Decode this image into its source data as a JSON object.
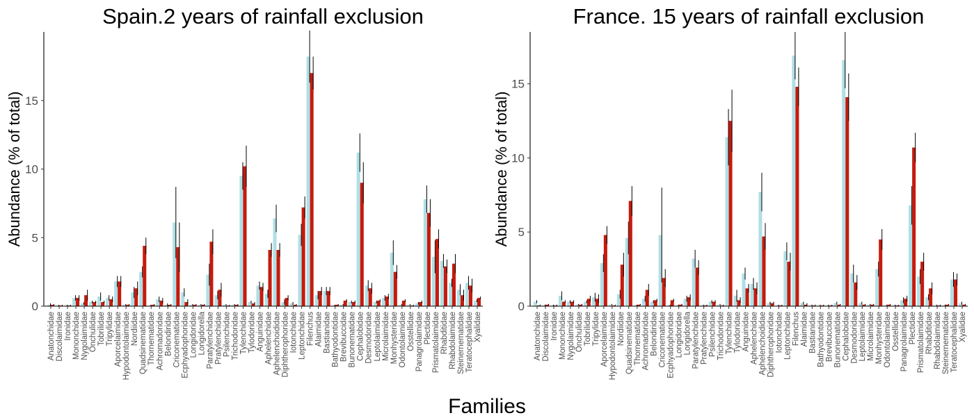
{
  "figure": {
    "xlabel": "Families"
  },
  "colors": {
    "control": "#b0dfe5",
    "exclusion": "#c51b0e"
  },
  "chart_data": [
    {
      "type": "bar",
      "title": "Spain.2 years of rainfall exclusion",
      "xlabel": "",
      "ylabel": "Abundance (% of total)",
      "ylim": [
        0,
        20
      ],
      "yticks": [
        0,
        5,
        10,
        15
      ],
      "grid": false,
      "legend": "none",
      "categories": [
        "Anatonchidae",
        "Discolaimidae",
        "Ironidae",
        "Mononchidae",
        "Nygolaimidae",
        "Onchulidae",
        "Tobrilidae",
        "Tripylidae",
        "Aporcelaimidae",
        "Hypodontolaimidae",
        "Nordiidae",
        "Quadsinematidae",
        "Thornematidae",
        "Achromadoridae",
        "Belondiridae",
        "Criconematidae",
        "Ecphyadophoridae",
        "Longidoridae",
        "Longidorella",
        "Paratylenchidae",
        "Pratylenchidae",
        "Psilenchidae",
        "Trichodoridae",
        "Tylenchidae",
        "Tylodoridae",
        "Anguinidae",
        "Aphelenchidae",
        "Aphelenchoididae",
        "Diphtherophoridae",
        "Iotonchidae",
        "Leptonchidae",
        "Filenchus",
        "Alaimidae",
        "Bastianidae",
        "Bathyodontidae",
        "Brevibuccidae",
        "Bunonematidae",
        "Cephalobidae",
        "Desmodoridae",
        "Leptolaimidae",
        "Microlaimidae",
        "Monhysteridae",
        "Odontolaimidae",
        "Osstellidae",
        "Panagrolaimidae",
        "Plectidae",
        "Prismatolaimidae",
        "Rhabditidae",
        "Rhabdolaimidae",
        "Steinernematidae",
        "Teratocephalidae",
        "Xyalidae"
      ],
      "series": [
        {
          "values": [
            0.1,
            0.05,
            0.05,
            0.6,
            0.2,
            0.3,
            0.7,
            0.6,
            1.8,
            0.1,
            1.0,
            2.5,
            0.05,
            0.5,
            0.1,
            6.1,
            1.0,
            0.1,
            0.1,
            2.3,
            0.8,
            0.1,
            0.1,
            9.5,
            0.3,
            1.5,
            0.9,
            6.4,
            0.3,
            0.2,
            5.2,
            18.2,
            0.8,
            1.1,
            0.05,
            0.1,
            0.3,
            11.2,
            1.5,
            0.3,
            0.6,
            3.9,
            0.1,
            0.1,
            0.2,
            7.8,
            3.6,
            3.3,
            1.7,
            1.2,
            1.7,
            0.4
          ],
          "errors": [
            0.1,
            0.05,
            0.05,
            0.2,
            0.1,
            0.1,
            0.3,
            0.2,
            0.4,
            0.05,
            0.4,
            0.4,
            0.05,
            0.2,
            0.1,
            2.6,
            0.3,
            0.05,
            0.05,
            0.8,
            0.3,
            0.05,
            0.05,
            1.0,
            0.1,
            0.3,
            0.3,
            1.0,
            0.2,
            0.1,
            0.8,
            1.9,
            0.3,
            0.3,
            0.05,
            0.05,
            0.1,
            1.4,
            0.4,
            0.1,
            0.2,
            0.9,
            0.05,
            0.05,
            0.1,
            1.0,
            1.2,
            0.5,
            0.3,
            0.4,
            0.5,
            0.1
          ]
        },
        {
          "values": [
            0.1,
            0.05,
            0.05,
            0.6,
            0.8,
            0.3,
            0.3,
            0.5,
            1.8,
            0.1,
            1.3,
            4.4,
            0.1,
            0.4,
            0.1,
            4.3,
            0.3,
            0.1,
            0.1,
            4.7,
            1.2,
            0.05,
            0.1,
            10.2,
            0.2,
            1.4,
            4.1,
            4.1,
            0.6,
            0.1,
            7.2,
            17.0,
            1.1,
            1.1,
            0.1,
            0.4,
            0.3,
            9.0,
            1.3,
            0.4,
            0.7,
            2.5,
            0.4,
            0.05,
            0.3,
            6.8,
            4.9,
            2.9,
            3.1,
            0.8,
            1.5,
            0.6
          ],
          "errors": [
            0.05,
            0.05,
            0.05,
            0.2,
            0.4,
            0.1,
            0.1,
            0.2,
            0.4,
            0.05,
            0.5,
            0.6,
            0.05,
            0.2,
            0.05,
            1.8,
            0.2,
            0.05,
            0.05,
            0.9,
            0.5,
            0.05,
            0.05,
            1.5,
            0.1,
            0.3,
            0.5,
            0.5,
            0.2,
            0.05,
            0.8,
            1.2,
            0.3,
            0.3,
            0.05,
            0.1,
            0.1,
            1.5,
            0.4,
            0.1,
            0.2,
            0.5,
            0.1,
            0.05,
            0.1,
            1.0,
            0.7,
            0.5,
            0.7,
            0.4,
            0.5,
            0.1
          ]
        }
      ]
    },
    {
      "type": "bar",
      "title": "France. 15 years of rainfall exclusion",
      "xlabel": "",
      "ylabel": "Abundance (% of total)",
      "ylim": [
        0,
        18.5
      ],
      "yticks": [
        0,
        5,
        10,
        15
      ],
      "grid": false,
      "legend": "none",
      "categories": [
        "Anatonchidae",
        "Discolaimidae",
        "Ironidae",
        "Mononchidae",
        "Nygolaimidae",
        "Onchulidae",
        "Tobrilidae",
        "Tripylidae",
        "Aporcelaimidae",
        "Hypodontolaimidae",
        "Nordiidae",
        "Quadsinematidae",
        "Thornematidae",
        "Achromadoridae",
        "Belondiridae",
        "Criconematidae",
        "Ecphyadophoridae",
        "Longidoridae",
        "Longidorella",
        "Paratylenchidae",
        "Pratylenchidae",
        "Psilenchidae",
        "Trichodoridae",
        "Tylenchidae",
        "Tylodoridae",
        "Anguinidae",
        "Aphelenchidae",
        "Aphelenchoididae",
        "Diphtherophoridae",
        "Iotonchidae",
        "Leptonchidae",
        "Filenchus",
        "Alaimidae",
        "Bastianidae",
        "Bathyodontidae",
        "Brevibuccidae",
        "Bunonematidae",
        "Cephalobidae",
        "Desmodoridae",
        "Leptolaimidae",
        "Microlaimidae",
        "Monhysteridae",
        "Odontolaimidae",
        "Osstellidae",
        "Panagrolaimidae",
        "Plectidae",
        "Prismatolaimidae",
        "Rhabditidae",
        "Rhabdolaimidae",
        "Steinernematidae",
        "Teratocephalidae",
        "Xyalidae"
      ],
      "series": [
        {
          "values": [
            0.3,
            0.05,
            0.05,
            0.7,
            0.3,
            0.1,
            0.3,
            0.6,
            2.9,
            0.1,
            0.8,
            4.6,
            0.05,
            0.5,
            0.3,
            4.8,
            0.05,
            0.05,
            0.5,
            3.2,
            0.05,
            0.3,
            0.1,
            11.4,
            0.7,
            2.2,
            1.5,
            7.7,
            0.2,
            0.05,
            3.7,
            16.9,
            0.2,
            0.05,
            0.05,
            0.05,
            0.2,
            16.6,
            2.2,
            0.2,
            0.1,
            2.5,
            0.05,
            0.05,
            0.4,
            6.8,
            2.0,
            0.6,
            0.05,
            0.05,
            1.8,
            0.2
          ],
          "errors": [
            0.1,
            0.05,
            0.05,
            0.3,
            0.1,
            0.05,
            0.1,
            0.3,
            0.6,
            0.05,
            0.3,
            1.1,
            0.05,
            0.2,
            0.1,
            3.2,
            0.05,
            0.05,
            0.2,
            0.6,
            0.05,
            0.1,
            0.05,
            1.9,
            0.4,
            0.4,
            0.4,
            1.3,
            0.1,
            0.05,
            0.6,
            1.6,
            0.1,
            0.05,
            0.05,
            0.05,
            0.1,
            1.9,
            0.6,
            0.1,
            0.05,
            0.5,
            0.05,
            0.05,
            0.2,
            1.3,
            0.5,
            0.2,
            0.05,
            0.05,
            0.5,
            0.1
          ]
        },
        {
          "values": [
            0.05,
            0.1,
            0.05,
            0.3,
            0.3,
            0.1,
            0.5,
            0.5,
            4.8,
            0.05,
            2.8,
            7.1,
            0.1,
            1.1,
            0.4,
            1.9,
            0.4,
            0.1,
            0.6,
            2.6,
            0.05,
            0.3,
            0.05,
            12.5,
            0.4,
            1.2,
            1.2,
            4.7,
            0.2,
            0.05,
            3.0,
            14.8,
            0.1,
            0.05,
            0.05,
            0.05,
            0.1,
            14.1,
            1.6,
            0.1,
            0.1,
            4.5,
            0.1,
            0.05,
            0.5,
            10.7,
            3.0,
            1.2,
            0.05,
            0.1,
            1.8,
            0.1
          ],
          "errors": [
            0.05,
            0.05,
            0.05,
            0.1,
            0.1,
            0.05,
            0.2,
            0.3,
            0.6,
            0.05,
            0.8,
            1.0,
            0.05,
            0.4,
            0.1,
            0.6,
            0.1,
            0.05,
            0.2,
            0.5,
            0.05,
            0.1,
            0.05,
            2.1,
            0.2,
            0.3,
            0.4,
            0.9,
            0.1,
            0.05,
            0.6,
            1.3,
            0.1,
            0.05,
            0.05,
            0.05,
            0.05,
            1.6,
            0.5,
            0.05,
            0.05,
            0.7,
            0.05,
            0.05,
            0.2,
            1.0,
            0.6,
            0.4,
            0.05,
            0.05,
            0.4,
            0.05
          ]
        }
      ]
    }
  ]
}
